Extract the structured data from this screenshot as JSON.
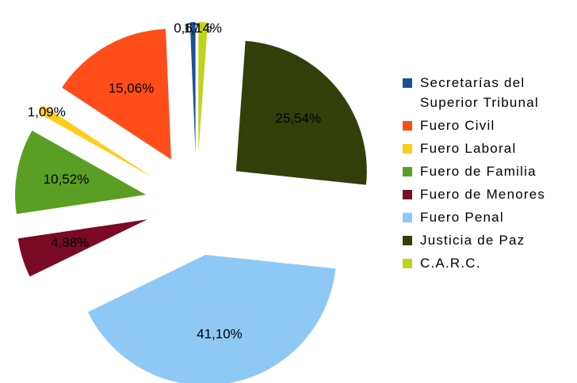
{
  "chart_data": {
    "type": "pie",
    "categories": [
      "Secretarías del Superior Tribunal",
      "Fuero Civil",
      "Fuero Laboral",
      "Fuero de Familia",
      "Fuero de Menores",
      "Fuero Penal",
      "Justicia de Paz",
      "C.A.R.C."
    ],
    "values": [
      0.67,
      15.06,
      1.09,
      10.52,
      4.88,
      41.1,
      25.54,
      1.14
    ],
    "value_labels": [
      "0,67%",
      "15,06%",
      "1,09%",
      "10,52%",
      "4,88%",
      "41,10%",
      "25,54%",
      "1,14%"
    ],
    "colors": [
      "#17519c",
      "#ff4d1a",
      "#ffcc1a",
      "#5a9e23",
      "#7a0a26",
      "#8ec8f5",
      "#333f0a",
      "#bcd41a"
    ],
    "direction": "counterclockwise",
    "exploded": true,
    "legend": "right"
  }
}
